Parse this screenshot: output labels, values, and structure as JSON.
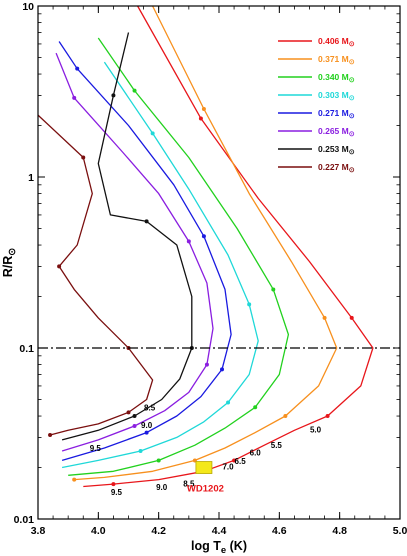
{
  "chart_data": {
    "type": "line",
    "xlabel": "log T",
    "xlabel_sub": "e",
    "xlabel_unit": " (K)",
    "ylabel": "R/R",
    "ylabel_sub": "⊙",
    "x_scale": "reversed",
    "y_scale": "log",
    "xlim": [
      5.0,
      3.8
    ],
    "ylim": [
      0.01,
      10
    ],
    "x_ticks": [
      5.0,
      4.8,
      4.6,
      4.4,
      4.2,
      4.0,
      3.8
    ],
    "x_tick_labels": [
      "5.0",
      "4.8",
      "4.6",
      "4.4",
      "4.2",
      "4.0",
      "3.8"
    ],
    "y_ticks": [
      10,
      1,
      0.1,
      0.01
    ],
    "y_tick_labels": [
      "10",
      "1",
      "0.1",
      "0.01"
    ],
    "grid": false,
    "legend_position": "top-right",
    "reference_line": {
      "y": 0.1,
      "style": "dash-dot"
    },
    "series": [
      {
        "name": "0.406 M",
        "name_sub": "⊙",
        "color": "#e8161b",
        "points": [
          [
            4.13,
            10
          ],
          [
            4.34,
            2.2
          ],
          [
            4.53,
            0.75
          ],
          [
            4.7,
            0.32
          ],
          [
            4.84,
            0.15
          ],
          [
            4.91,
            0.1
          ],
          [
            4.87,
            0.06
          ],
          [
            4.76,
            0.04
          ],
          [
            4.65,
            0.033
          ],
          [
            4.55,
            0.027
          ],
          [
            4.45,
            0.022
          ],
          [
            4.35,
            0.019
          ],
          [
            4.2,
            0.017
          ],
          [
            4.05,
            0.016
          ],
          [
            3.95,
            0.0155
          ]
        ]
      },
      {
        "name": "0.371 M",
        "name_sub": "⊙",
        "color": "#f7901e",
        "points": [
          [
            4.18,
            10
          ],
          [
            4.35,
            2.5
          ],
          [
            4.5,
            0.8
          ],
          [
            4.64,
            0.32
          ],
          [
            4.75,
            0.15
          ],
          [
            4.79,
            0.1
          ],
          [
            4.73,
            0.06
          ],
          [
            4.62,
            0.04
          ],
          [
            4.52,
            0.032
          ],
          [
            4.42,
            0.026
          ],
          [
            4.32,
            0.022
          ],
          [
            4.18,
            0.019
          ],
          [
            4.02,
            0.0175
          ],
          [
            3.92,
            0.017
          ]
        ]
      },
      {
        "name": "0.340 M",
        "name_sub": "⊙",
        "color": "#22d11e",
        "points": [
          [
            4.0,
            6.5
          ],
          [
            4.12,
            3.2
          ],
          [
            4.3,
            1.3
          ],
          [
            4.46,
            0.5
          ],
          [
            4.58,
            0.22
          ],
          [
            4.63,
            0.12
          ],
          [
            4.6,
            0.07
          ],
          [
            4.52,
            0.045
          ],
          [
            4.42,
            0.034
          ],
          [
            4.32,
            0.027
          ],
          [
            4.2,
            0.022
          ],
          [
            4.05,
            0.019
          ],
          [
            3.9,
            0.018
          ]
        ]
      },
      {
        "name": "0.303 M",
        "name_sub": "⊙",
        "color": "#1fd8d8",
        "points": [
          [
            4.02,
            4.7
          ],
          [
            4.18,
            1.8
          ],
          [
            4.3,
            0.85
          ],
          [
            4.43,
            0.35
          ],
          [
            4.5,
            0.18
          ],
          [
            4.53,
            0.11
          ],
          [
            4.5,
            0.07
          ],
          [
            4.43,
            0.048
          ],
          [
            4.35,
            0.037
          ],
          [
            4.26,
            0.03
          ],
          [
            4.14,
            0.025
          ],
          [
            4.0,
            0.022
          ],
          [
            3.88,
            0.02
          ]
        ]
      },
      {
        "name": "0.271 M",
        "name_sub": "⊙",
        "color": "#1a1ae0",
        "points": [
          [
            3.87,
            6.2
          ],
          [
            3.93,
            4.3
          ],
          [
            4.1,
            2.0
          ],
          [
            4.25,
            0.9
          ],
          [
            4.35,
            0.45
          ],
          [
            4.42,
            0.22
          ],
          [
            4.44,
            0.12
          ],
          [
            4.41,
            0.075
          ],
          [
            4.34,
            0.052
          ],
          [
            4.26,
            0.04
          ],
          [
            4.16,
            0.032
          ],
          [
            4.02,
            0.026
          ],
          [
            3.88,
            0.022
          ]
        ]
      },
      {
        "name": "0.265 M",
        "name_sub": "⊙",
        "color": "#8a1ee0",
        "points": [
          [
            3.86,
            5.3
          ],
          [
            3.92,
            2.9
          ],
          [
            4.08,
            1.4
          ],
          [
            4.2,
            0.8
          ],
          [
            4.3,
            0.42
          ],
          [
            4.36,
            0.24
          ],
          [
            4.38,
            0.13
          ],
          [
            4.36,
            0.08
          ],
          [
            4.3,
            0.055
          ],
          [
            4.22,
            0.043
          ],
          [
            4.12,
            0.035
          ],
          [
            4.0,
            0.029
          ],
          [
            3.88,
            0.025
          ]
        ]
      },
      {
        "name": "0.253 M",
        "name_sub": "⊙",
        "color": "#111111",
        "points": [
          [
            4.1,
            7.0
          ],
          [
            4.05,
            3.0
          ],
          [
            4.0,
            1.2
          ],
          [
            4.04,
            0.6
          ],
          [
            4.16,
            0.55
          ],
          [
            4.26,
            0.4
          ],
          [
            4.31,
            0.2
          ],
          [
            4.31,
            0.1
          ],
          [
            4.27,
            0.066
          ],
          [
            4.21,
            0.05
          ],
          [
            4.12,
            0.04
          ],
          [
            4.0,
            0.033
          ],
          [
            3.88,
            0.029
          ]
        ]
      },
      {
        "name": "0.227 M",
        "name_sub": "⊙",
        "color": "#7a0f0f",
        "points": [
          [
            3.8,
            2.3
          ],
          [
            3.95,
            1.3
          ],
          [
            3.98,
            0.8
          ],
          [
            3.93,
            0.4
          ],
          [
            3.87,
            0.3
          ],
          [
            3.92,
            0.22
          ],
          [
            4.0,
            0.15
          ],
          [
            4.1,
            0.1
          ],
          [
            4.18,
            0.065
          ],
          [
            4.16,
            0.05
          ],
          [
            4.1,
            0.042
          ],
          [
            4.0,
            0.036
          ],
          [
            3.9,
            0.033
          ],
          [
            3.84,
            0.031
          ]
        ]
      }
    ],
    "age_labels": [
      {
        "text": "5.0",
        "x": 4.72,
        "y": 0.032
      },
      {
        "text": "5.5",
        "x": 4.59,
        "y": 0.026
      },
      {
        "text": "6.0",
        "x": 4.52,
        "y": 0.0235
      },
      {
        "text": "6.5",
        "x": 4.47,
        "y": 0.021
      },
      {
        "text": "7.0",
        "x": 4.43,
        "y": 0.0195
      },
      {
        "text": "8.5",
        "x": 4.17,
        "y": 0.043
      },
      {
        "text": "9.0",
        "x": 4.16,
        "y": 0.034
      },
      {
        "text": "9.5",
        "x": 3.99,
        "y": 0.025
      },
      {
        "text": "8.5",
        "x": 4.3,
        "y": 0.0155
      },
      {
        "text": "9.0",
        "x": 4.21,
        "y": 0.0148
      },
      {
        "text": "9.5",
        "x": 4.06,
        "y": 0.0138
      }
    ],
    "annotation": {
      "text": "WD1202",
      "x": 4.36,
      "y": 0.0145,
      "point_x": 4.35,
      "point_y": 0.02
    }
  }
}
